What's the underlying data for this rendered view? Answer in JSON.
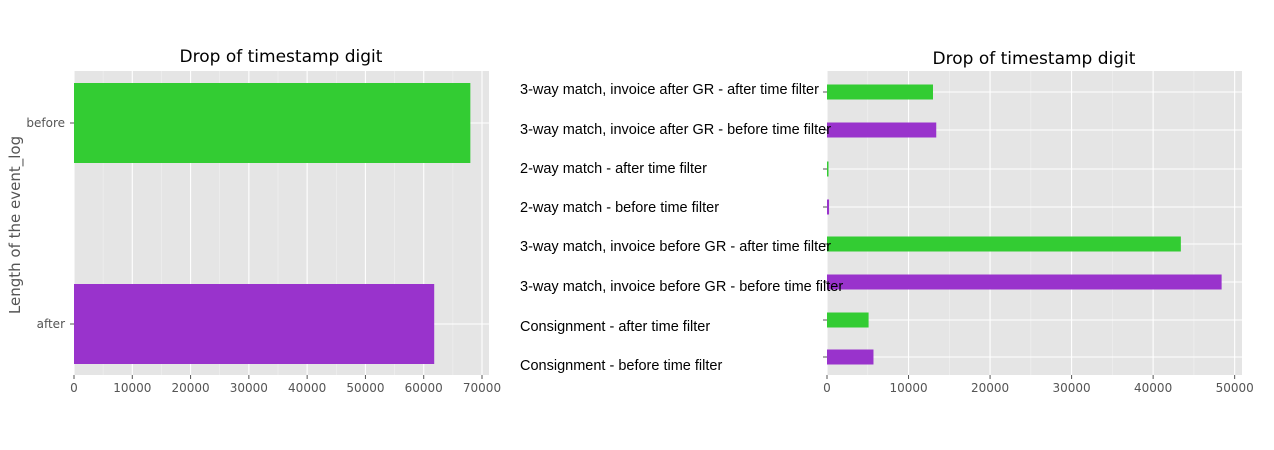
{
  "colors": {
    "green": "#33cc33",
    "purple": "#9933cc",
    "panel": "#e5e5e5",
    "grid": "#ffffff"
  },
  "chart_data": [
    {
      "type": "bar",
      "orientation": "horizontal",
      "title": "Drop of timestamp digit",
      "ylabel": "Length of the event_log",
      "xlabel": "",
      "categories": [
        "before",
        "after"
      ],
      "values": [
        68000,
        61800
      ],
      "bar_colors": [
        "#33cc33",
        "#9933cc"
      ],
      "xlim": [
        0,
        70000
      ],
      "xticks": [
        0,
        10000,
        20000,
        30000,
        40000,
        50000,
        60000,
        70000
      ],
      "grid": true
    },
    {
      "type": "bar",
      "orientation": "horizontal",
      "title": "Drop of timestamp digit",
      "xlabel": "",
      "ylabel": "",
      "categories": [
        "3-way match, invoice after GR - after time filter",
        "3-way match, invoice after GR - before time filter",
        "2-way match - after time filter",
        "2-way match - before time filter",
        "3-way match, invoice before GR - after time filter",
        "3-way match, invoice before GR - before time filter",
        "Consignment - after time filter",
        "Consignment - before time filter"
      ],
      "values": [
        13000,
        13400,
        150,
        250,
        43400,
        48400,
        5100,
        5700
      ],
      "bar_colors": [
        "#33cc33",
        "#9933cc",
        "#33cc33",
        "#9933cc",
        "#33cc33",
        "#9933cc",
        "#33cc33",
        "#9933cc"
      ],
      "xlim": [
        0,
        50000
      ],
      "xticks": [
        0,
        10000,
        20000,
        30000,
        40000,
        50000
      ],
      "grid": true
    }
  ]
}
